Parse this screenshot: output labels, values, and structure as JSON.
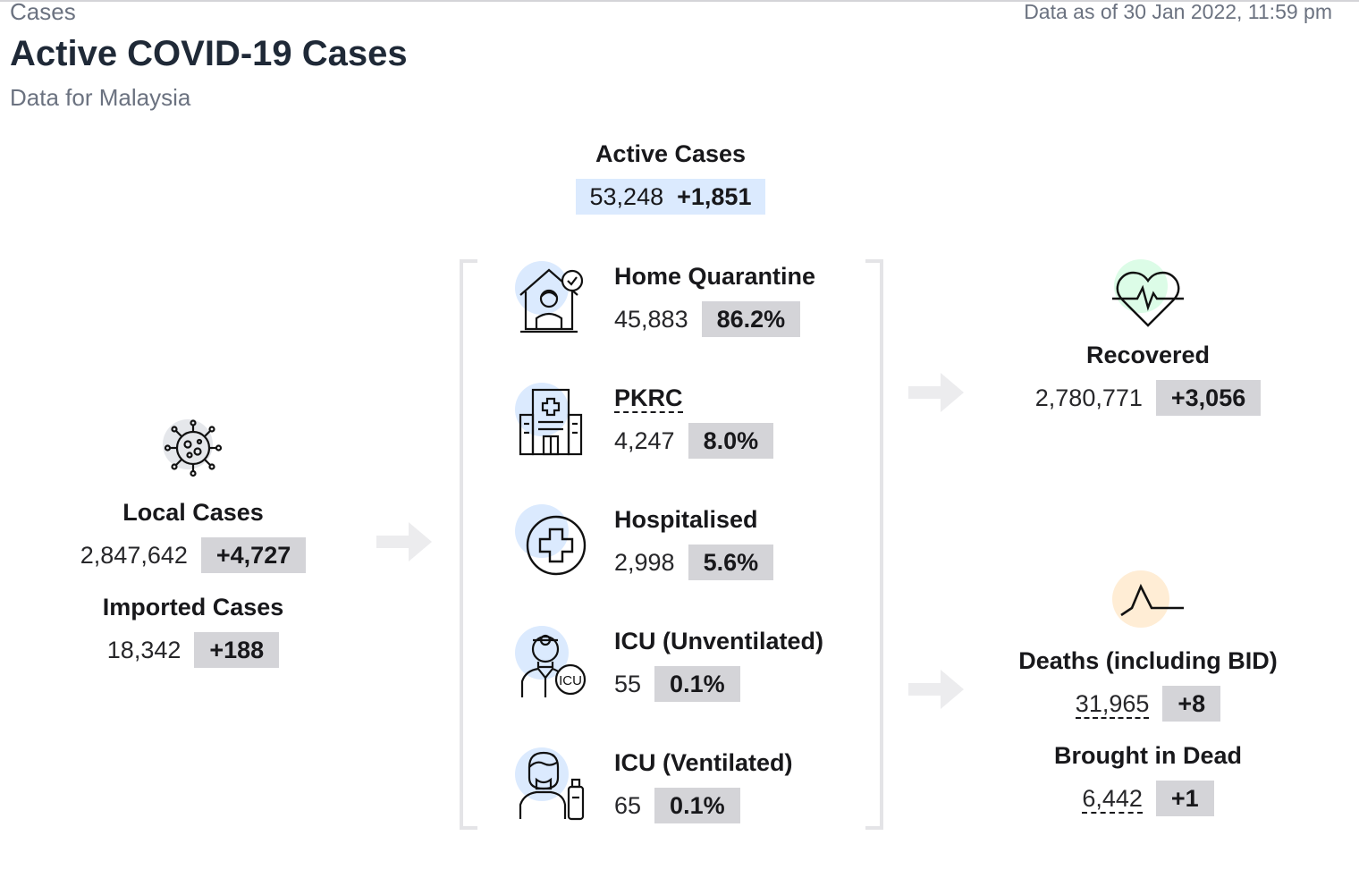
{
  "header": {
    "breadcrumb": "Cases",
    "title": "Active COVID-19 Cases",
    "subtitle": "Data for Malaysia",
    "data_as_of": "Data as of 30 Jan 2022, 11:59 pm"
  },
  "active": {
    "label": "Active Cases",
    "value": "53,248",
    "change": "+1,851"
  },
  "local": {
    "label": "Local Cases",
    "value": "2,847,642",
    "change": "+4,727",
    "icon": "virus-icon"
  },
  "imported": {
    "label": "Imported Cases",
    "value": "18,342",
    "change": "+188"
  },
  "breakdown": [
    {
      "label": "Home Quarantine",
      "value": "45,883",
      "pct": "86.2%",
      "icon": "home-quarantine-icon"
    },
    {
      "label": "PKRC",
      "value": "4,247",
      "pct": "8.0%",
      "icon": "building-icon"
    },
    {
      "label": "Hospitalised",
      "value": "2,998",
      "pct": "5.6%",
      "icon": "medical-cross-icon"
    },
    {
      "label": "ICU (Unventilated)",
      "value": "55",
      "pct": "0.1%",
      "icon": "icu-doctor-icon"
    },
    {
      "label": "ICU (Ventilated)",
      "value": "65",
      "pct": "0.1%",
      "icon": "ventilator-icon"
    }
  ],
  "recovered": {
    "label": "Recovered",
    "value": "2,780,771",
    "change": "+3,056",
    "icon": "heartbeat-icon"
  },
  "deaths": {
    "label": "Deaths (including BID)",
    "value": "31,965",
    "change": "+8",
    "icon": "pulse-line-icon"
  },
  "bid": {
    "label": "Brought in Dead",
    "value": "6,442",
    "change": "+1"
  },
  "colors": {
    "chip": "#d4d4d8",
    "active_chip": "#dbeafe",
    "blue_circle": "#dbeafe",
    "green_circle": "#dcfce7",
    "orange_circle": "#ffedd5",
    "gray_circle": "#e5e7eb"
  }
}
